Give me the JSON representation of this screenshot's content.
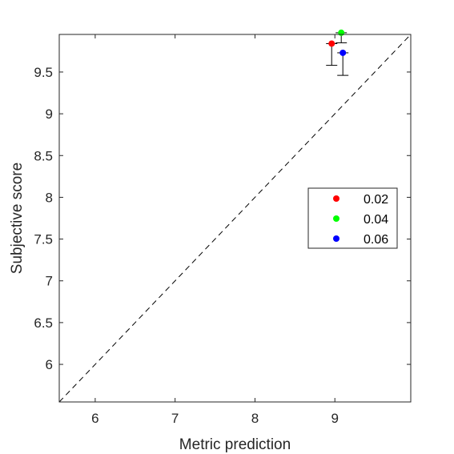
{
  "chart_data": {
    "type": "scatter",
    "title": "",
    "xlabel": "Metric prediction",
    "ylabel": "Subjective score",
    "xlim": [
      5.55,
      9.95
    ],
    "ylim": [
      5.55,
      9.95
    ],
    "xticks": [
      6,
      7,
      8,
      9
    ],
    "yticks": [
      6,
      6.5,
      7,
      7.5,
      8,
      8.5,
      9,
      9.5
    ],
    "xtick_labels": [
      "6",
      "7",
      "8",
      "9"
    ],
    "ytick_labels": [
      "6",
      "6.5",
      "7",
      "7.5",
      "8",
      "8.5",
      "9",
      "9.5"
    ],
    "grid": false,
    "legend_position": "right",
    "reference_line": {
      "style": "dashed",
      "color": "#000000",
      "from": [
        5.55,
        5.55
      ],
      "to": [
        9.95,
        9.95
      ]
    },
    "series": [
      {
        "name": "0.02",
        "color": "#ff0000",
        "x": 8.96,
        "y": 9.84,
        "err_low": 9.58,
        "err_high": 9.84
      },
      {
        "name": "0.04",
        "color": "#00ff00",
        "x": 9.08,
        "y": 9.97,
        "err_low": 9.85,
        "err_high": 9.97
      },
      {
        "name": "0.06",
        "color": "#0000ff",
        "x": 9.1,
        "y": 9.73,
        "err_low": 9.46,
        "err_high": 9.73
      }
    ]
  }
}
